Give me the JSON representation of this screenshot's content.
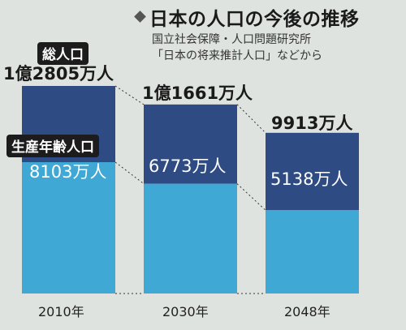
{
  "title": "日本の人口の今後の推移",
  "source_lines": [
    "国立社会保障・人口問題研究所",
    "「日本の将来推計人口」などから"
  ],
  "legend": {
    "total_label": "総人口",
    "working_label": "生産年齢人口"
  },
  "colors": {
    "total": "#2e4b84",
    "working": "#3fa8d4",
    "background": "#dfe3df"
  },
  "chart_data": {
    "type": "bar",
    "categories": [
      "2010年",
      "2030年",
      "2048年"
    ],
    "series": [
      {
        "name": "総人口",
        "values": [
          12805,
          11661,
          9913
        ],
        "labels": [
          "1億2805万人",
          "1億1661万人",
          "9913万人"
        ]
      },
      {
        "name": "生産年齢人口",
        "values": [
          8103,
          6773,
          5138
        ],
        "labels": [
          "8103万人",
          "6773万人",
          "5138万人"
        ]
      }
    ],
    "units": "万人",
    "grid": false,
    "legend_position": "inline-left"
  }
}
